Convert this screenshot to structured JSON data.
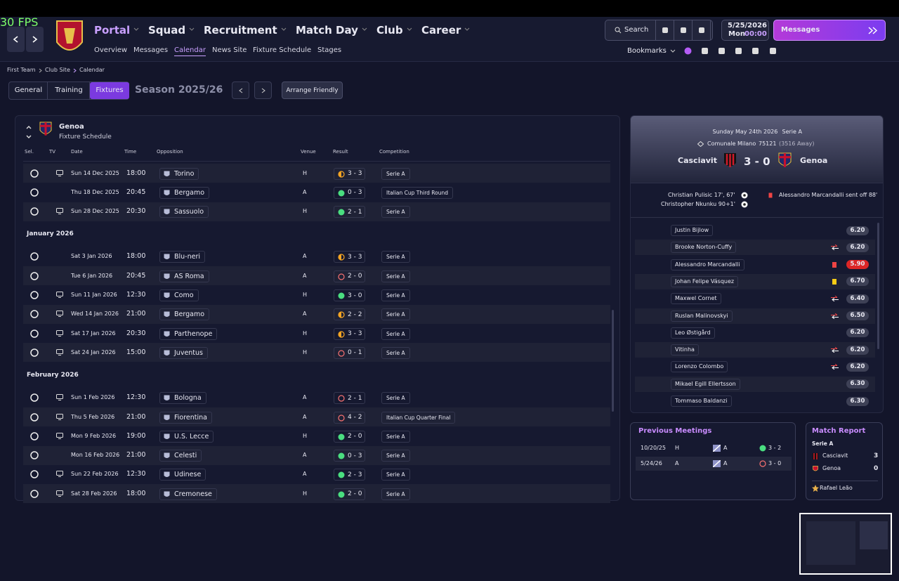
{
  "fps": "30 FPS",
  "nav": {
    "main": [
      "Portal",
      "Squad",
      "Recruitment",
      "Match Day",
      "Club",
      "Career"
    ],
    "sub": [
      "Overview",
      "Messages",
      "Calendar",
      "News Site",
      "Fixture Schedule",
      "Stages"
    ]
  },
  "toolbar": {
    "search": "Search",
    "date": "5/25/2026",
    "day": "Mon",
    "time": "00:00",
    "messages": "Messages",
    "bookmarks": "Bookmarks"
  },
  "breadcrumb": [
    "First Team",
    "Club Site",
    "Calendar"
  ],
  "tabs": [
    "General",
    "Training",
    "Fixtures"
  ],
  "season": "Season 2025/26",
  "arrange": "Arrange Friendly",
  "schedule": {
    "team": "Genoa",
    "subtitle": "Fixture Schedule",
    "columns": [
      "Sel.",
      "TV",
      "Date",
      "Time",
      "Opposition",
      "Venue",
      "Result",
      "Competition"
    ],
    "groups": [
      {
        "month": null,
        "rows": [
          {
            "date": "Sun 14 Dec 2025",
            "time": "18:00",
            "opposition": "Torino",
            "venue": "H",
            "result": "3 - 3",
            "competition": "Serie A",
            "tv": true,
            "outcome": "draw"
          },
          {
            "date": "Thu 18 Dec 2025",
            "time": "20:45",
            "opposition": "Bergamo",
            "venue": "A",
            "result": "0 - 3",
            "competition": "Italian Cup Third Round",
            "tv": false,
            "outcome": "win"
          },
          {
            "date": "Sun 28 Dec 2025",
            "time": "20:30",
            "opposition": "Sassuolo",
            "venue": "H",
            "result": "2 - 1",
            "competition": "Serie A",
            "tv": true,
            "outcome": "win"
          }
        ]
      },
      {
        "month": "January 2026",
        "rows": [
          {
            "date": "Sat 3 Jan 2026",
            "time": "18:00",
            "opposition": "Blu-neri",
            "venue": "A",
            "result": "3 - 3",
            "competition": "Serie A",
            "tv": false,
            "outcome": "draw"
          },
          {
            "date": "Tue 6 Jan 2026",
            "time": "20:45",
            "opposition": "AS Roma",
            "venue": "A",
            "result": "2 - 0",
            "competition": "Serie A",
            "tv": false,
            "outcome": "loss"
          },
          {
            "date": "Sun 11 Jan 2026",
            "time": "12:30",
            "opposition": "Como",
            "venue": "H",
            "result": "3 - 0",
            "competition": "Serie A",
            "tv": true,
            "outcome": "win"
          },
          {
            "date": "Wed 14 Jan 2026",
            "time": "21:00",
            "opposition": "Bergamo",
            "venue": "A",
            "result": "2 - 2",
            "competition": "Serie A",
            "tv": true,
            "outcome": "draw"
          },
          {
            "date": "Sat 17 Jan 2026",
            "time": "20:30",
            "opposition": "Parthenope",
            "venue": "H",
            "result": "3 - 3",
            "competition": "Serie A",
            "tv": true,
            "outcome": "draw"
          },
          {
            "date": "Sat 24 Jan 2026",
            "time": "15:00",
            "opposition": "Juventus",
            "venue": "H",
            "result": "0 - 1",
            "competition": "Serie A",
            "tv": true,
            "outcome": "loss"
          }
        ]
      },
      {
        "month": "February 2026",
        "rows": [
          {
            "date": "Sun 1 Feb 2026",
            "time": "12:30",
            "opposition": "Bologna",
            "venue": "A",
            "result": "2 - 1",
            "competition": "Serie A",
            "tv": true,
            "outcome": "loss"
          },
          {
            "date": "Thu 5 Feb 2026",
            "time": "21:00",
            "opposition": "Fiorentina",
            "venue": "A",
            "result": "4 - 2",
            "competition": "Italian Cup Quarter Final",
            "tv": true,
            "outcome": "loss"
          },
          {
            "date": "Mon 9 Feb 2026",
            "time": "19:00",
            "opposition": "U.S. Lecce",
            "venue": "H",
            "result": "2 - 0",
            "competition": "Serie A",
            "tv": true,
            "outcome": "win"
          },
          {
            "date": "Mon 16 Feb 2026",
            "time": "21:00",
            "opposition": "Celesti",
            "venue": "A",
            "result": "0 - 3",
            "competition": "Serie A",
            "tv": false,
            "outcome": "win"
          },
          {
            "date": "Sun 22 Feb 2026",
            "time": "12:30",
            "opposition": "Udinese",
            "venue": "A",
            "result": "2 - 3",
            "competition": "Serie A",
            "tv": true,
            "outcome": "win"
          },
          {
            "date": "Sat 28 Feb 2026",
            "time": "18:00",
            "opposition": "Cremonese",
            "venue": "H",
            "result": "2 - 0",
            "competition": "Serie A",
            "tv": true,
            "outcome": "win"
          }
        ]
      }
    ]
  },
  "match": {
    "date": "Sunday May 24th 2026",
    "competition": "Serie A",
    "stadium": "Comunale Milano",
    "attendance": "75121",
    "away_fans": "(3516 Away)",
    "home": "Casciavit",
    "score": "3 - 0",
    "away": "Genoa",
    "home_events": [
      "Christian Pulisic 17', 67'",
      "Christopher Nkunku 90+1'"
    ],
    "away_events": [
      "Alessandro Marcandalli sent off 88'"
    ],
    "players": [
      {
        "name": "Justin Bijlow",
        "rating": "6.20",
        "event": null
      },
      {
        "name": "Brooke Norton-Cuffy",
        "rating": "6.20",
        "event": "sub"
      },
      {
        "name": "Alessandro Marcandalli",
        "rating": "5.90",
        "event": "red"
      },
      {
        "name": "Johan Felipe Vásquez",
        "rating": "6.70",
        "event": "yellow"
      },
      {
        "name": "Maxwel Cornet",
        "rating": "6.40",
        "event": "sub"
      },
      {
        "name": "Ruslan Malinovskyi",
        "rating": "6.50",
        "event": "sub"
      },
      {
        "name": "Leo Østigård",
        "rating": "6.20",
        "event": null
      },
      {
        "name": "Vitinha",
        "rating": "6.20",
        "event": "sub"
      },
      {
        "name": "Lorenzo Colombo",
        "rating": "6.20",
        "event": "sub"
      },
      {
        "name": "Mikael Egill Ellertsson",
        "rating": "6.30",
        "event": null
      },
      {
        "name": "Tommaso Baldanzi",
        "rating": "6.30",
        "event": null
      }
    ]
  },
  "previous_meetings": {
    "title": "Previous Meetings",
    "rows": [
      {
        "date": "10/20/25",
        "venue": "H",
        "opponent": "A",
        "result": "3 - 2",
        "outcome": "win"
      },
      {
        "date": "5/24/26",
        "venue": "A",
        "opponent": "A",
        "result": "3 - 0",
        "outcome": "loss"
      }
    ]
  },
  "match_report": {
    "title": "Match Report",
    "competition": "Serie A",
    "teams": [
      {
        "name": "Casciavit",
        "goals": "3"
      },
      {
        "name": "Genoa",
        "goals": "0"
      }
    ],
    "player_of_match": "Rafael Leão"
  }
}
